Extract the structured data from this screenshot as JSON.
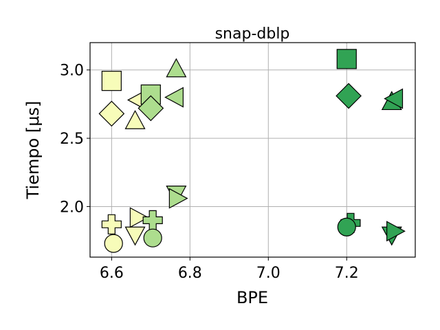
{
  "chart_data": {
    "type": "scatter",
    "title": "snap-dblp",
    "xlabel": "BPE",
    "ylabel": "Tiempo [μs]",
    "xlim": [
      6.545,
      7.375
    ],
    "ylim": [
      1.63,
      3.2
    ],
    "xticks": [
      6.6,
      6.8,
      7.0,
      7.2
    ],
    "yticks": [
      2.0,
      2.5,
      3.0
    ],
    "grid": true,
    "colors": {
      "pale": "#f7fcb9",
      "light": "#d9f0a3",
      "mid": "#addd8e",
      "dark": "#31a354"
    },
    "points": [
      {
        "x": 6.6,
        "y": 2.92,
        "marker": "square",
        "color": "pale"
      },
      {
        "x": 6.6,
        "y": 2.68,
        "marker": "diamond",
        "color": "pale"
      },
      {
        "x": 6.66,
        "y": 2.62,
        "marker": "triangle-up",
        "color": "pale"
      },
      {
        "x": 6.67,
        "y": 2.78,
        "marker": "triangle-left",
        "color": "pale"
      },
      {
        "x": 6.7,
        "y": 2.82,
        "marker": "square",
        "color": "mid"
      },
      {
        "x": 6.7,
        "y": 2.72,
        "marker": "diamond",
        "color": "mid"
      },
      {
        "x": 6.765,
        "y": 3.0,
        "marker": "triangle-up",
        "color": "mid"
      },
      {
        "x": 6.765,
        "y": 2.8,
        "marker": "triangle-left",
        "color": "mid"
      },
      {
        "x": 6.6,
        "y": 1.87,
        "marker": "plus",
        "color": "pale"
      },
      {
        "x": 6.605,
        "y": 1.73,
        "marker": "circle",
        "color": "pale"
      },
      {
        "x": 6.66,
        "y": 1.8,
        "marker": "triangle-down",
        "color": "pale"
      },
      {
        "x": 6.665,
        "y": 1.92,
        "marker": "triangle-right",
        "color": "pale"
      },
      {
        "x": 6.705,
        "y": 1.9,
        "marker": "plus",
        "color": "mid"
      },
      {
        "x": 6.705,
        "y": 1.77,
        "marker": "circle",
        "color": "mid"
      },
      {
        "x": 6.765,
        "y": 2.1,
        "marker": "triangle-down",
        "color": "mid"
      },
      {
        "x": 6.765,
        "y": 2.06,
        "marker": "triangle-right",
        "color": "mid"
      },
      {
        "x": 7.2,
        "y": 3.08,
        "marker": "square",
        "color": "dark"
      },
      {
        "x": 7.205,
        "y": 2.81,
        "marker": "diamond",
        "color": "dark"
      },
      {
        "x": 7.315,
        "y": 2.76,
        "marker": "triangle-up",
        "color": "dark"
      },
      {
        "x": 7.325,
        "y": 2.79,
        "marker": "triangle-left",
        "color": "dark"
      },
      {
        "x": 7.21,
        "y": 1.88,
        "marker": "plus",
        "color": "dark"
      },
      {
        "x": 7.2,
        "y": 1.85,
        "marker": "circle",
        "color": "dark"
      },
      {
        "x": 7.315,
        "y": 1.8,
        "marker": "triangle-down",
        "color": "dark"
      },
      {
        "x": 7.32,
        "y": 1.82,
        "marker": "triangle-right",
        "color": "dark"
      }
    ]
  }
}
